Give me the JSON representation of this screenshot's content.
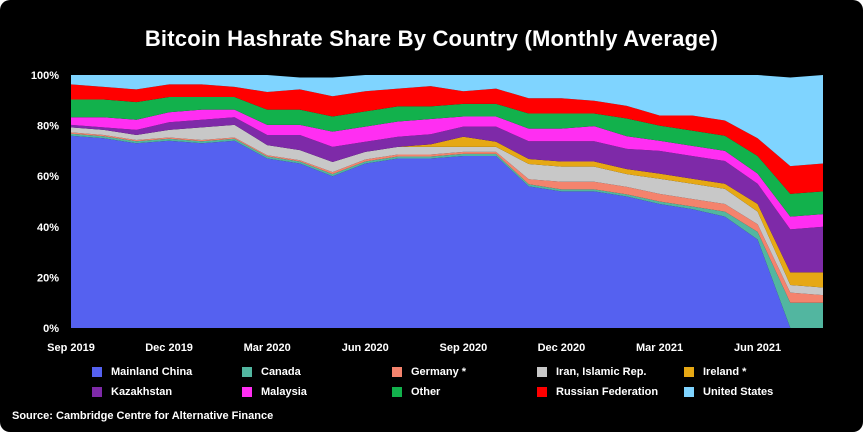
{
  "chart_data": {
    "type": "area",
    "title": "Bitcoin Hashrate Share By Country (Monthly Average)",
    "stacked": true,
    "xlabel": "",
    "ylabel": "",
    "ylim": [
      0,
      100
    ],
    "y_ticks": [
      "0%",
      "20%",
      "40%",
      "60%",
      "80%",
      "100%"
    ],
    "x": [
      "Sep 2019",
      "Oct 2019",
      "Nov 2019",
      "Dec 2019",
      "Jan 2020",
      "Feb 2020",
      "Mar 2020",
      "Apr 2020",
      "May 2020",
      "Jun 2020",
      "Jul 2020",
      "Aug 2020",
      "Sep 2020",
      "Oct 2020",
      "Nov 2020",
      "Dec 2020",
      "Jan 2021",
      "Feb 2021",
      "Mar 2021",
      "Apr 2021",
      "May 2021",
      "Jun 2021",
      "Jul 2021",
      "Aug 2021"
    ],
    "x_tick_labels": [
      "Sep 2019",
      "Dec 2019",
      "Mar 2020",
      "Jun 2020",
      "Sep 2020",
      "Dec 2020",
      "Mar 2021",
      "Jun 2021"
    ],
    "x_tick_indices": [
      0,
      3,
      6,
      9,
      12,
      15,
      18,
      21
    ],
    "series": [
      {
        "name": "Mainland China",
        "color": "#5561f0",
        "values": [
          76,
          75,
          73,
          74,
          73,
          74,
          67,
          65,
          60,
          65,
          67,
          67,
          68,
          68,
          56,
          54,
          54,
          52,
          49,
          47,
          44,
          35,
          0,
          0
        ]
      },
      {
        "name": "Canada",
        "color": "#52b6a0",
        "values": [
          0.8,
          0.8,
          0.8,
          0.8,
          0.8,
          0.8,
          0.8,
          0.8,
          0.8,
          0.8,
          0.8,
          0.8,
          0.8,
          0.8,
          0.8,
          0.8,
          0.8,
          0.8,
          1,
          1,
          2,
          3,
          10,
          10
        ]
      },
      {
        "name": "Germany *",
        "color": "#f4836d",
        "values": [
          0.5,
          0.5,
          0.5,
          0.5,
          0.5,
          0.5,
          0.5,
          0.5,
          0.8,
          0.8,
          0.8,
          0.8,
          0.8,
          0.8,
          2,
          3,
          3,
          3,
          3,
          3,
          3,
          3,
          4,
          3
        ]
      },
      {
        "name": "Iran, Islamic Rep.",
        "color": "#c8c8c8",
        "values": [
          2,
          2,
          2,
          3,
          5,
          5,
          4,
          4,
          4,
          3,
          3,
          3,
          2,
          2,
          6,
          6,
          6,
          5,
          6,
          6,
          6,
          5,
          3,
          3
        ]
      },
      {
        "name": "Ireland *",
        "color": "#e6a814",
        "values": [
          0,
          0,
          0,
          0,
          0,
          0,
          0,
          0,
          0,
          0,
          0,
          1,
          4,
          2,
          2,
          2,
          2,
          2,
          2,
          2,
          2,
          3,
          5,
          6
        ]
      },
      {
        "name": "Kazakhstan",
        "color": "#7e2aa8",
        "values": [
          1,
          1,
          2,
          3,
          3,
          3,
          4,
          6,
          6,
          4,
          4,
          4,
          4,
          6,
          7,
          8,
          8,
          8,
          9,
          9,
          9,
          8,
          17,
          18
        ]
      },
      {
        "name": "Malaysia",
        "color": "#ff2ef2",
        "values": [
          3,
          4,
          4,
          4,
          4,
          3,
          4,
          4,
          6,
          6,
          6,
          6,
          4,
          4,
          5,
          5,
          6,
          5,
          4,
          4,
          4,
          4,
          5,
          5
        ]
      },
      {
        "name": "Other",
        "color": "#12b14c",
        "values": [
          7,
          7,
          7,
          6,
          5,
          5,
          6,
          6,
          6,
          6,
          6,
          5,
          5,
          5,
          6,
          6,
          5,
          7,
          6,
          6,
          6,
          7,
          9,
          9
        ]
      },
      {
        "name": "Russian Federation",
        "color": "#ff0000",
        "values": [
          6,
          5,
          5,
          5,
          5,
          4,
          7,
          8,
          8,
          8,
          7,
          8,
          5,
          6,
          6,
          6,
          5,
          5,
          4,
          6,
          6,
          7,
          11,
          11
        ]
      },
      {
        "name": "United States",
        "color": "#7fd4ff",
        "values": [
          3.7,
          4.7,
          5.7,
          3.7,
          3.7,
          4.7,
          6.7,
          4.7,
          7.4,
          6.4,
          5.4,
          4.4,
          6.4,
          5.4,
          9.2,
          9.2,
          10.2,
          12.2,
          16,
          16,
          18,
          25,
          35,
          35
        ]
      }
    ]
  },
  "source": "Source: Cambridge Centre for Alternative Finance"
}
